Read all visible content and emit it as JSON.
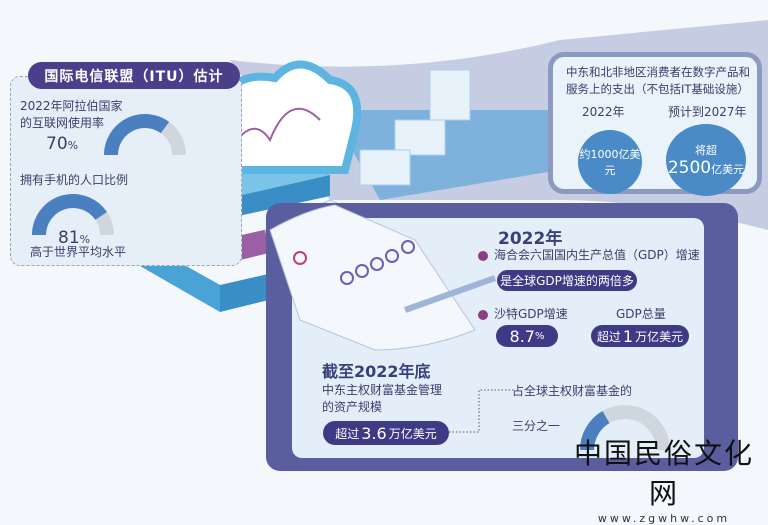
{
  "colors": {
    "purple_dark": "#4b3f8c",
    "panel": "#5b5e9e",
    "blue": "#4a8ac6",
    "gauge_fill": "#4a7fc0",
    "gauge_track": "#cfd6de",
    "bullet": "#8c3d86"
  },
  "itu": {
    "title": "国际电信联盟（ITU）估计",
    "internet_label_1": "2022年阿拉伯国家",
    "internet_label_2": "的互联网使用率",
    "internet_value": "70",
    "internet_unit": "%",
    "internet_pct": 70,
    "mobile_label": "拥有手机的人口比例",
    "mobile_value": "81",
    "mobile_unit": "%",
    "mobile_pct": 81,
    "mobile_note": "高于世界平均水平"
  },
  "spending": {
    "title_1": "中东和北非地区消费者在数字产品和",
    "title_2": "服务上的支出（不包括IT基础设施）",
    "year_2022": "2022年",
    "value_2022": "约1000亿美元",
    "year_2027": "预计到2027年",
    "value_2027_prefix": "将超",
    "value_2027_num": "2500",
    "value_2027_unit": "亿美元"
  },
  "gdp": {
    "year": "2022年",
    "gcc_label": "海合会六国国内生产总值（GDP）增速",
    "gcc_value": "是全球GDP增速的两倍多",
    "saudi_label": "沙特GDP增速",
    "saudi_value": "8.7",
    "saudi_unit": "%",
    "total_label": "GDP总量",
    "total_prefix": "超过",
    "total_num": "1",
    "total_unit": "万亿美元"
  },
  "swf": {
    "title": "截至2022年底",
    "label_1": "中东主权财富基金管理",
    "label_2": "的资产规模",
    "value_prefix": "超过",
    "value_num": "3.6",
    "value_unit": "万亿美元",
    "share_label": "占全球主权财富基金的",
    "share_value": "三分之一",
    "share_fraction": 0.333
  },
  "watermark": {
    "text": "中国民俗文化网",
    "url": "www.zgwhw.com"
  }
}
